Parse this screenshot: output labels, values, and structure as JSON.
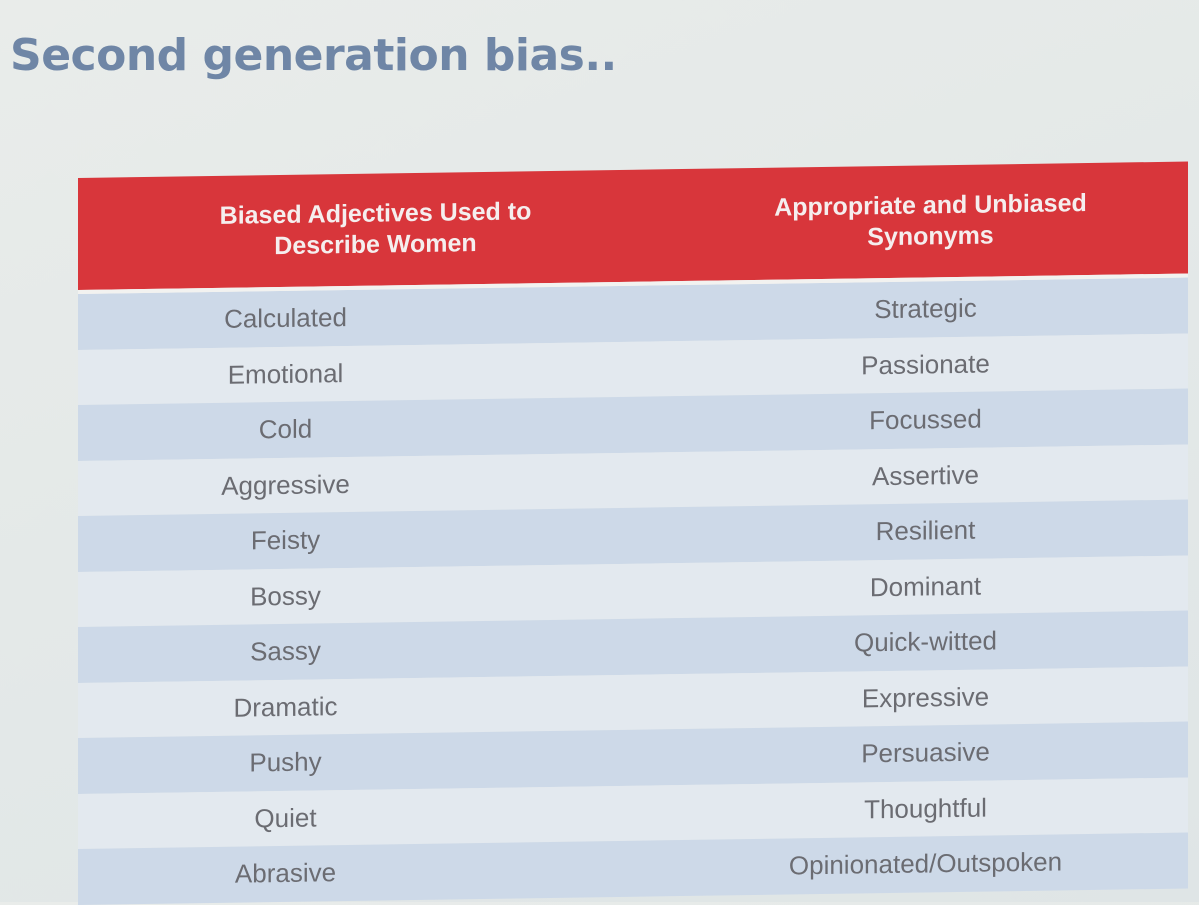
{
  "slide": {
    "title": "Second generation bias.."
  },
  "table": {
    "headers": {
      "left": "Biased Adjectives Used to Describe Women",
      "right": "Appropriate and Unbiased Synonyms"
    },
    "rows": [
      {
        "biased": "Calculated",
        "unbiased": "Strategic"
      },
      {
        "biased": "Emotional",
        "unbiased": "Passionate"
      },
      {
        "biased": "Cold",
        "unbiased": "Focussed"
      },
      {
        "biased": "Aggressive",
        "unbiased": "Assertive"
      },
      {
        "biased": "Feisty",
        "unbiased": "Resilient"
      },
      {
        "biased": "Bossy",
        "unbiased": "Dominant"
      },
      {
        "biased": "Sassy",
        "unbiased": "Quick-witted"
      },
      {
        "biased": "Dramatic",
        "unbiased": "Expressive"
      },
      {
        "biased": "Pushy",
        "unbiased": "Persuasive"
      },
      {
        "biased": "Quiet",
        "unbiased": "Thoughtful"
      },
      {
        "biased": "Abrasive",
        "unbiased": "Opinionated/Outspoken"
      }
    ]
  },
  "colors": {
    "title": "#6f86a6",
    "header_bg": "#d8363b",
    "header_text": "#f5eeee",
    "row_dark": "#cdd9e8",
    "row_light": "#e3e9ef",
    "cell_text": "#6b6c72"
  }
}
